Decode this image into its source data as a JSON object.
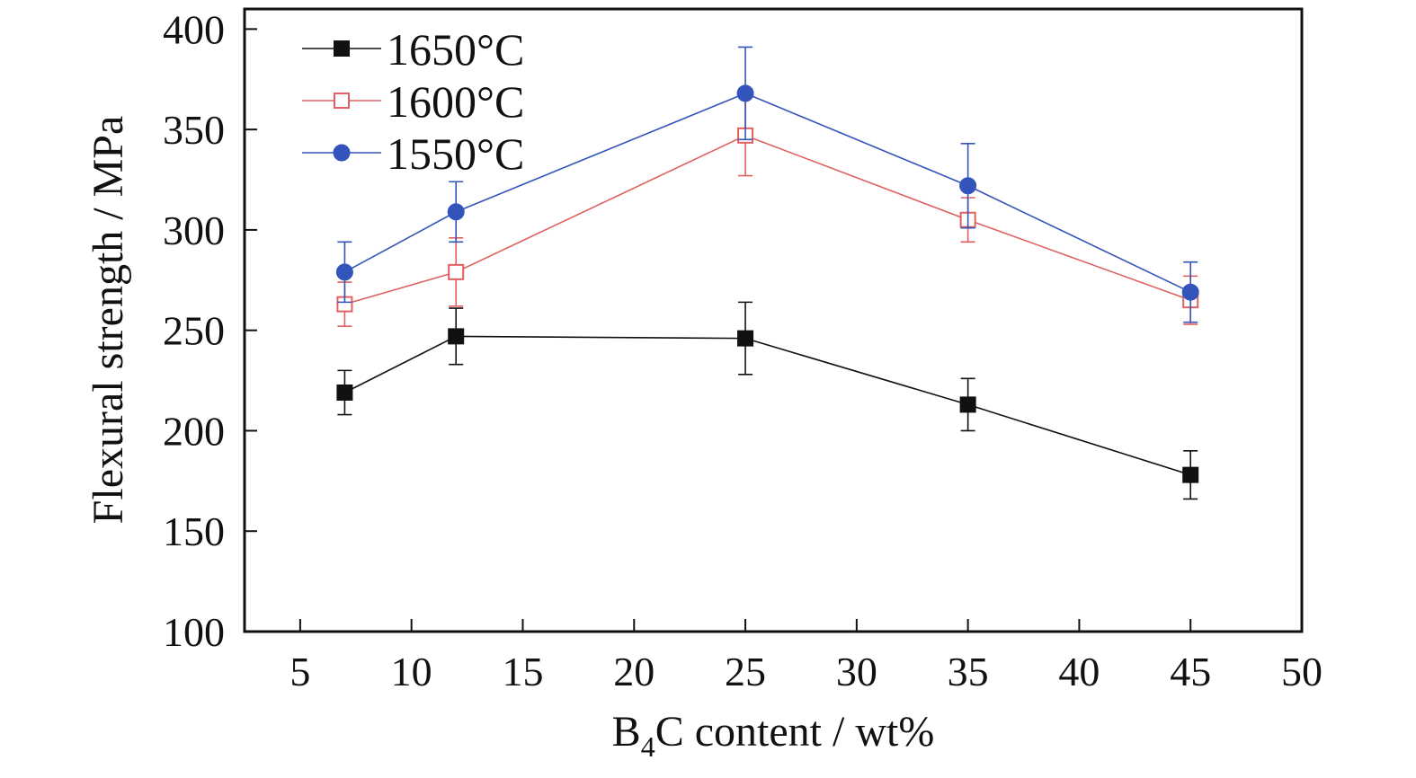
{
  "chart_data": {
    "type": "line",
    "xlabel_main": "B",
    "xlabel_sub": "4",
    "xlabel_rest": "C content / wt%",
    "ylabel": "Flexural strength / MPa",
    "xlim": [
      2.5,
      50
    ],
    "ylim": [
      100,
      410
    ],
    "x_ticks": [
      "5",
      "10",
      "15",
      "20",
      "25",
      "30",
      "35",
      "40",
      "45",
      "50"
    ],
    "y_ticks": [
      "100",
      "150",
      "200",
      "250",
      "300",
      "350",
      "400"
    ],
    "x": [
      7,
      12,
      25,
      35,
      45
    ],
    "legend_position": "top-left",
    "grid": false,
    "series": [
      {
        "name": "1650°C",
        "color": "#111111",
        "marker": "filled-square",
        "values": [
          219,
          247,
          246,
          213,
          178
        ],
        "errors": [
          11,
          14,
          18,
          13,
          12
        ]
      },
      {
        "name": "1600°C",
        "color": "#e06060",
        "marker": "open-square",
        "values": [
          263,
          279,
          347,
          305,
          265
        ],
        "errors": [
          11,
          17,
          20,
          11,
          12
        ]
      },
      {
        "name": "1550°C",
        "color": "#3355bb",
        "marker": "filled-circle",
        "values": [
          279,
          309,
          368,
          322,
          269
        ],
        "errors": [
          15,
          15,
          23,
          21,
          15
        ]
      }
    ]
  }
}
